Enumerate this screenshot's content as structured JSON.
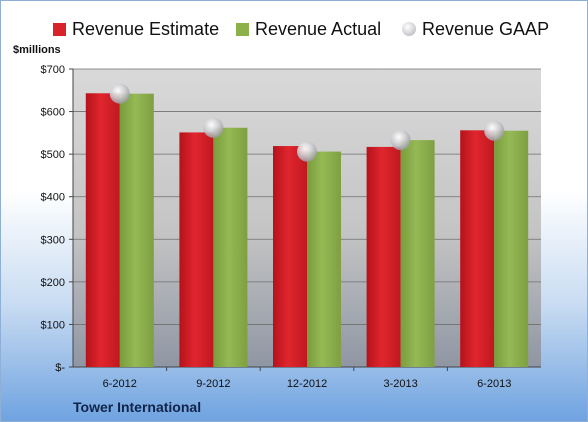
{
  "chart_data": {
    "type": "bar",
    "title": "",
    "xlabel": "",
    "ylabel": "$millions",
    "company": "Tower International",
    "categories": [
      "6-2012",
      "9-2012",
      "12-2012",
      "3-2013",
      "6-2013"
    ],
    "ylim": [
      0,
      700
    ],
    "yticks": [
      0,
      100,
      200,
      300,
      400,
      500,
      600,
      700
    ],
    "ytick_labels": [
      "$-",
      "$100",
      "$200",
      "$300",
      "$400",
      "$500",
      "$600",
      "$700"
    ],
    "grid": true,
    "legend_position": "top",
    "series": [
      {
        "name": "Revenue Estimate",
        "kind": "bar",
        "color": "#d9232a",
        "values": [
          643,
          551,
          519,
          517,
          556
        ]
      },
      {
        "name": "Revenue Actual",
        "kind": "bar",
        "color": "#8cb04a",
        "values": [
          642,
          562,
          506,
          533,
          555
        ]
      },
      {
        "name": "Revenue GAAP",
        "kind": "marker",
        "color": "#c8c8cc",
        "values": [
          642,
          562,
          506,
          533,
          555
        ]
      }
    ]
  }
}
